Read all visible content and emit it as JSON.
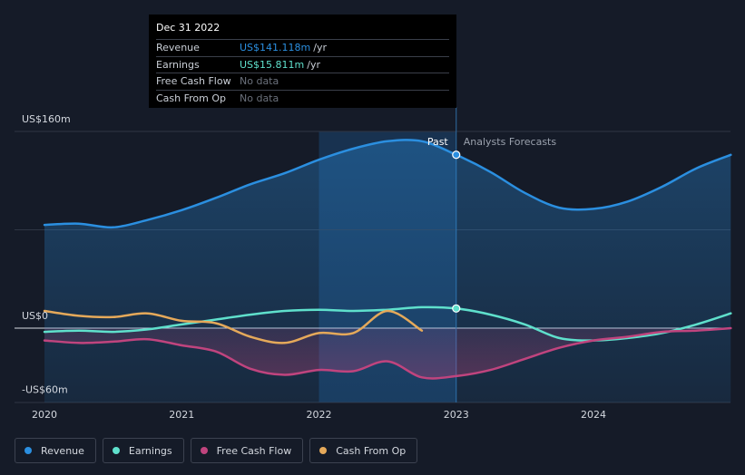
{
  "colors": {
    "revenue": "#2b8fe0",
    "earnings": "#5fe0cc",
    "fcf": "#c0447e",
    "cfo": "#e5a95a",
    "axis_text": "#d4d8df",
    "grid": "#2f3644"
  },
  "tooltip": {
    "date": "Dec 31 2022",
    "rows": [
      {
        "label": "Revenue",
        "value": "US$141.118m",
        "unit": "/yr",
        "color": "#2b8fe0"
      },
      {
        "label": "Earnings",
        "value": "US$15.811m",
        "unit": "/yr",
        "color": "#5fe0cc"
      },
      {
        "label": "Free Cash Flow",
        "value": "No data",
        "unit": "",
        "color": "#6b717c"
      },
      {
        "label": "Cash From Op",
        "value": "No data",
        "unit": "",
        "color": "#6b717c"
      }
    ]
  },
  "legend": [
    {
      "label": "Revenue",
      "color": "#2b8fe0"
    },
    {
      "label": "Earnings",
      "color": "#5fe0cc"
    },
    {
      "label": "Free Cash Flow",
      "color": "#c0447e"
    },
    {
      "label": "Cash From Op",
      "color": "#e5a95a"
    }
  ],
  "chart_data": {
    "type": "line",
    "title": "",
    "xlabel": "",
    "ylabel": "",
    "ylim": [
      -60,
      160
    ],
    "xlim": [
      2020,
      2025
    ],
    "y_tick_labels": [
      {
        "value": 160,
        "label": "US$160m"
      },
      {
        "value": 0,
        "label": "US$0"
      },
      {
        "value": -60,
        "label": "-US$60m"
      }
    ],
    "x_tick_labels": [
      {
        "value": 2020,
        "label": "2020"
      },
      {
        "value": 2021,
        "label": "2021"
      },
      {
        "value": 2022,
        "label": "2022"
      },
      {
        "value": 2023,
        "label": "2023"
      },
      {
        "value": 2024,
        "label": "2024"
      }
    ],
    "highlight_range": [
      2022,
      2023
    ],
    "forecast_start": 2023,
    "annotations": {
      "past": "Past",
      "forecast": "Analysts Forecasts"
    },
    "series": [
      {
        "name": "Revenue",
        "key": "revenue",
        "area": true,
        "marker_at": 2023,
        "x": [
          2020,
          2020.25,
          2020.5,
          2020.75,
          2021,
          2021.25,
          2021.5,
          2021.75,
          2022,
          2022.25,
          2022.5,
          2022.75,
          2023,
          2023.25,
          2023.5,
          2023.75,
          2024,
          2024.25,
          2024.5,
          2024.75,
          2025
        ],
        "y": [
          84,
          85,
          82,
          88,
          96,
          106,
          117,
          126,
          137,
          146,
          152,
          152,
          141,
          127,
          110,
          98,
          97,
          103,
          115,
          130,
          141
        ]
      },
      {
        "name": "Earnings",
        "key": "earnings",
        "area": false,
        "marker_at": 2023,
        "x": [
          2020,
          2020.25,
          2020.5,
          2020.75,
          2021,
          2021.25,
          2021.5,
          2021.75,
          2022,
          2022.25,
          2022.5,
          2022.75,
          2023,
          2023.25,
          2023.5,
          2023.75,
          2024,
          2024.25,
          2024.5,
          2024.75,
          2025
        ],
        "y": [
          -3,
          -2,
          -3,
          -1,
          3,
          7,
          11,
          14,
          15,
          14,
          15,
          17,
          16,
          11,
          3,
          -8,
          -10,
          -8,
          -4,
          3,
          12
        ]
      },
      {
        "name": "Free Cash Flow",
        "key": "fcf",
        "area": true,
        "marker_at": null,
        "x": [
          2020,
          2020.25,
          2020.5,
          2020.75,
          2021,
          2021.25,
          2021.5,
          2021.75,
          2022,
          2022.25,
          2022.5,
          2022.75,
          2023,
          2023.25,
          2023.5,
          2023.75,
          2024,
          2024.25,
          2024.5,
          2024.75,
          2025
        ],
        "y": [
          -10,
          -12,
          -11,
          -9,
          -14,
          -19,
          -33,
          -38,
          -34,
          -35,
          -27,
          -40,
          -39,
          -34,
          -25,
          -16,
          -10,
          -7,
          -3,
          -2,
          0
        ]
      },
      {
        "name": "Cash From Op",
        "key": "cfo",
        "area": false,
        "marker_at": null,
        "x": [
          2020,
          2020.25,
          2020.5,
          2020.75,
          2021,
          2021.25,
          2021.5,
          2021.75,
          2022,
          2022.25,
          2022.5,
          2022.75
        ],
        "y": [
          14,
          10,
          9,
          12,
          6,
          4,
          -7,
          -12,
          -4,
          -4,
          14,
          -2
        ]
      }
    ]
  }
}
